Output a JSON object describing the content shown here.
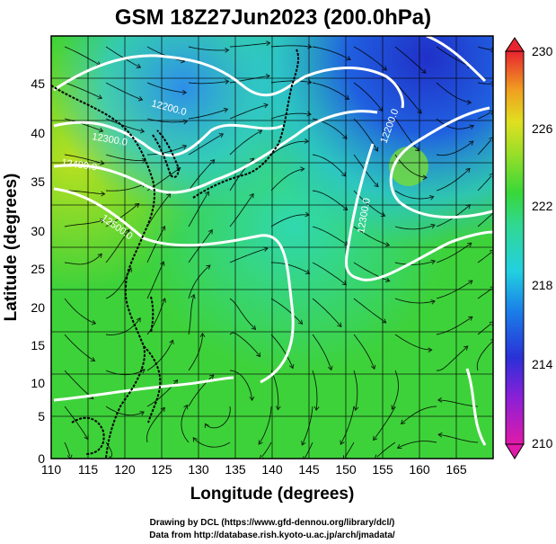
{
  "chart_data": {
    "type": "heatmap",
    "title": "GSM 18Z27Jun2023 (200.0hPa)",
    "xlabel": "Longitude (degrees)",
    "ylabel": "Latitude  (degrees)",
    "xlim": [
      110,
      170
    ],
    "ylim": [
      0,
      50
    ],
    "x_ticks": [
      "110",
      "115",
      "120",
      "125",
      "130",
      "135",
      "140",
      "145",
      "150",
      "155",
      "160",
      "165"
    ],
    "y_ticks": [
      "0",
      "5",
      "10",
      "15",
      "20",
      "25",
      "30",
      "35",
      "40",
      "45"
    ],
    "colorbar": {
      "min": 210,
      "max": 230,
      "tick_labels": [
        "210",
        "214",
        "218",
        "222",
        "226",
        "230"
      ]
    },
    "contour_labels": [
      "12200.0",
      "12300.0",
      "12400.0",
      "12500.0",
      "12200.0",
      "12300.0"
    ]
  },
  "credits": {
    "line1": "Drawing by DCL (https://www.gfd-dennou.org/library/dcl/)",
    "line2": "Data from http://database.rish.kyoto-u.ac.jp/arch/jmadata/"
  },
  "colors": {
    "cold_blue": "#1a3fd6",
    "cyan": "#2fd0e0",
    "green": "#3fd23c",
    "yellow": "#d8e020",
    "orange": "#f08a18",
    "red": "#e8243a",
    "magenta": "#e01aa8"
  }
}
